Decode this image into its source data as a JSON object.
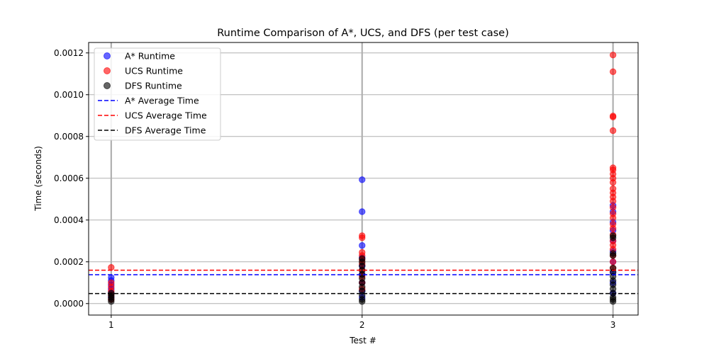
{
  "chart_data": {
    "type": "scatter",
    "title": "Runtime Comparison of A*, UCS, and DFS (per test case)",
    "xlabel": "Test #",
    "ylabel": "Time (seconds)",
    "x_ticks": [
      1,
      2,
      3
    ],
    "y_ticks": [
      "0.0000",
      "0.0002",
      "0.0004",
      "0.0006",
      "0.0008",
      "0.0010",
      "0.0012"
    ],
    "xlim": [
      0.91,
      3.1
    ],
    "ylim": [
      -5.5e-05,
      0.00125
    ],
    "grid": true,
    "legend_position": "top-left",
    "series": [
      {
        "name": "A* Runtime",
        "kind": "scatter",
        "color": "#0000ff",
        "points": [
          {
            "x": 1,
            "y": 0.000125
          },
          {
            "x": 1,
            "y": 0.00011
          },
          {
            "x": 1,
            "y": 9e-05
          },
          {
            "x": 1,
            "y": 7e-05
          },
          {
            "x": 1,
            "y": 5e-05
          },
          {
            "x": 1,
            "y": 3e-05
          },
          {
            "x": 2,
            "y": 0.000593
          },
          {
            "x": 2,
            "y": 0.00044
          },
          {
            "x": 2,
            "y": 0.000278
          },
          {
            "x": 2,
            "y": 0.00022
          },
          {
            "x": 2,
            "y": 0.00018
          },
          {
            "x": 2,
            "y": 0.00014
          },
          {
            "x": 2,
            "y": 0.0001
          },
          {
            "x": 2,
            "y": 6e-05
          },
          {
            "x": 2,
            "y": 3e-05
          },
          {
            "x": 3,
            "y": 0.00047
          },
          {
            "x": 3,
            "y": 0.00044
          },
          {
            "x": 3,
            "y": 0.00039
          },
          {
            "x": 3,
            "y": 0.00035
          },
          {
            "x": 3,
            "y": 0.0003
          },
          {
            "x": 3,
            "y": 0.00025
          },
          {
            "x": 3,
            "y": 0.0002
          },
          {
            "x": 3,
            "y": 0.00015
          },
          {
            "x": 3,
            "y": 0.0001
          },
          {
            "x": 3,
            "y": 5e-05
          }
        ]
      },
      {
        "name": "UCS Runtime",
        "kind": "scatter",
        "color": "#ff0000",
        "points": [
          {
            "x": 1,
            "y": 0.000173
          },
          {
            "x": 1,
            "y": 0.0001
          },
          {
            "x": 1,
            "y": 8e-05
          },
          {
            "x": 1,
            "y": 6e-05
          },
          {
            "x": 1,
            "y": 4e-05
          },
          {
            "x": 1,
            "y": 2e-05
          },
          {
            "x": 2,
            "y": 0.000325
          },
          {
            "x": 2,
            "y": 0.000315
          },
          {
            "x": 2,
            "y": 0.000245
          },
          {
            "x": 2,
            "y": 0.00023
          },
          {
            "x": 2,
            "y": 0.00021
          },
          {
            "x": 2,
            "y": 0.00019
          },
          {
            "x": 2,
            "y": 0.00016
          },
          {
            "x": 2,
            "y": 0.00013
          },
          {
            "x": 2,
            "y": 0.0001
          },
          {
            "x": 2,
            "y": 7e-05
          },
          {
            "x": 3,
            "y": 0.00119
          },
          {
            "x": 3,
            "y": 0.00111
          },
          {
            "x": 3,
            "y": 0.000898
          },
          {
            "x": 3,
            "y": 0.000893
          },
          {
            "x": 3,
            "y": 0.000828
          },
          {
            "x": 3,
            "y": 0.00065
          },
          {
            "x": 3,
            "y": 0.00064
          },
          {
            "x": 3,
            "y": 0.00062
          },
          {
            "x": 3,
            "y": 0.0006
          },
          {
            "x": 3,
            "y": 0.00058
          },
          {
            "x": 3,
            "y": 0.00055
          },
          {
            "x": 3,
            "y": 0.00053
          },
          {
            "x": 3,
            "y": 0.00051
          },
          {
            "x": 3,
            "y": 0.00049
          },
          {
            "x": 3,
            "y": 0.00046
          },
          {
            "x": 3,
            "y": 0.00043
          },
          {
            "x": 3,
            "y": 0.00041
          },
          {
            "x": 3,
            "y": 0.00038
          },
          {
            "x": 3,
            "y": 0.00036
          },
          {
            "x": 3,
            "y": 0.00033
          },
          {
            "x": 3,
            "y": 0.0003
          },
          {
            "x": 3,
            "y": 0.00028
          },
          {
            "x": 3,
            "y": 0.00026
          },
          {
            "x": 3,
            "y": 0.00023
          },
          {
            "x": 3,
            "y": 0.0002
          },
          {
            "x": 3,
            "y": 0.00017
          }
        ]
      },
      {
        "name": "DFS Runtime",
        "kind": "scatter",
        "color": "#000000",
        "points": [
          {
            "x": 1,
            "y": 5e-05
          },
          {
            "x": 1,
            "y": 4e-05
          },
          {
            "x": 1,
            "y": 3e-05
          },
          {
            "x": 1,
            "y": 2e-05
          },
          {
            "x": 1,
            "y": 1e-05
          },
          {
            "x": 2,
            "y": 0.000215
          },
          {
            "x": 2,
            "y": 0.0002
          },
          {
            "x": 2,
            "y": 0.00018
          },
          {
            "x": 2,
            "y": 0.00016
          },
          {
            "x": 2,
            "y": 0.00014
          },
          {
            "x": 2,
            "y": 0.00012
          },
          {
            "x": 2,
            "y": 0.0001
          },
          {
            "x": 2,
            "y": 8e-05
          },
          {
            "x": 2,
            "y": 6e-05
          },
          {
            "x": 2,
            "y": 4e-05
          },
          {
            "x": 2,
            "y": 2e-05
          },
          {
            "x": 2,
            "y": 1e-05
          },
          {
            "x": 3,
            "y": 0.000325
          },
          {
            "x": 3,
            "y": 0.000315
          },
          {
            "x": 3,
            "y": 0.00024
          },
          {
            "x": 3,
            "y": 0.00023
          },
          {
            "x": 3,
            "y": 0.00017
          },
          {
            "x": 3,
            "y": 0.00015
          },
          {
            "x": 3,
            "y": 0.00013
          },
          {
            "x": 3,
            "y": 0.00011
          },
          {
            "x": 3,
            "y": 9e-05
          },
          {
            "x": 3,
            "y": 7e-05
          },
          {
            "x": 3,
            "y": 5e-05
          },
          {
            "x": 3,
            "y": 3e-05
          },
          {
            "x": 3,
            "y": 2e-05
          },
          {
            "x": 3,
            "y": 1e-05
          }
        ]
      },
      {
        "name": "A* Average Time",
        "kind": "hline",
        "color": "#0000ff",
        "value": 0.000138
      },
      {
        "name": "UCS Average Time",
        "kind": "hline",
        "color": "#ff0000",
        "value": 0.00016
      },
      {
        "name": "DFS Average Time",
        "kind": "hline",
        "color": "#000000",
        "value": 4.8e-05
      }
    ]
  }
}
